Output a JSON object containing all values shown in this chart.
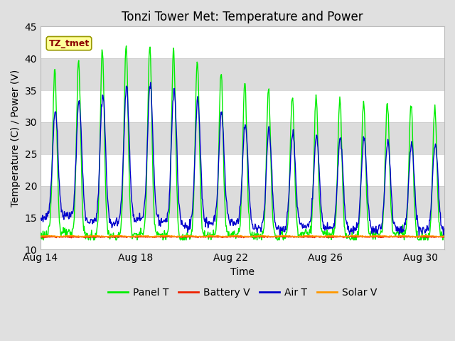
{
  "title": "Tonzi Tower Met: Temperature and Power",
  "xlabel": "Time",
  "ylabel": "Temperature (C) / Power (V)",
  "ylim": [
    10,
    45
  ],
  "yticks": [
    10,
    15,
    20,
    25,
    30,
    35,
    40,
    45
  ],
  "xtick_labels": [
    "Aug 14",
    "Aug 18",
    "Aug 22",
    "Aug 26",
    "Aug 30"
  ],
  "xtick_positions": [
    0,
    4,
    8,
    12,
    16
  ],
  "xlim": [
    0,
    17
  ],
  "annotation_text": "TZ_tmet",
  "annotation_color": "#8B0000",
  "annotation_bg": "#FFFF99",
  "annotation_edge": "#999900",
  "fig_bg": "#E0E0E0",
  "plot_bg": "#FFFFFF",
  "band_color": "#DCDCDC",
  "colors": {
    "panel_t": "#00EE00",
    "battery_v": "#EE2200",
    "air_t": "#0000CC",
    "solar_v": "#FF9900"
  },
  "legend_labels": [
    "Panel T",
    "Battery V",
    "Air T",
    "Solar V"
  ],
  "title_fontsize": 12,
  "axis_fontsize": 10,
  "tick_fontsize": 10,
  "legend_fontsize": 10
}
